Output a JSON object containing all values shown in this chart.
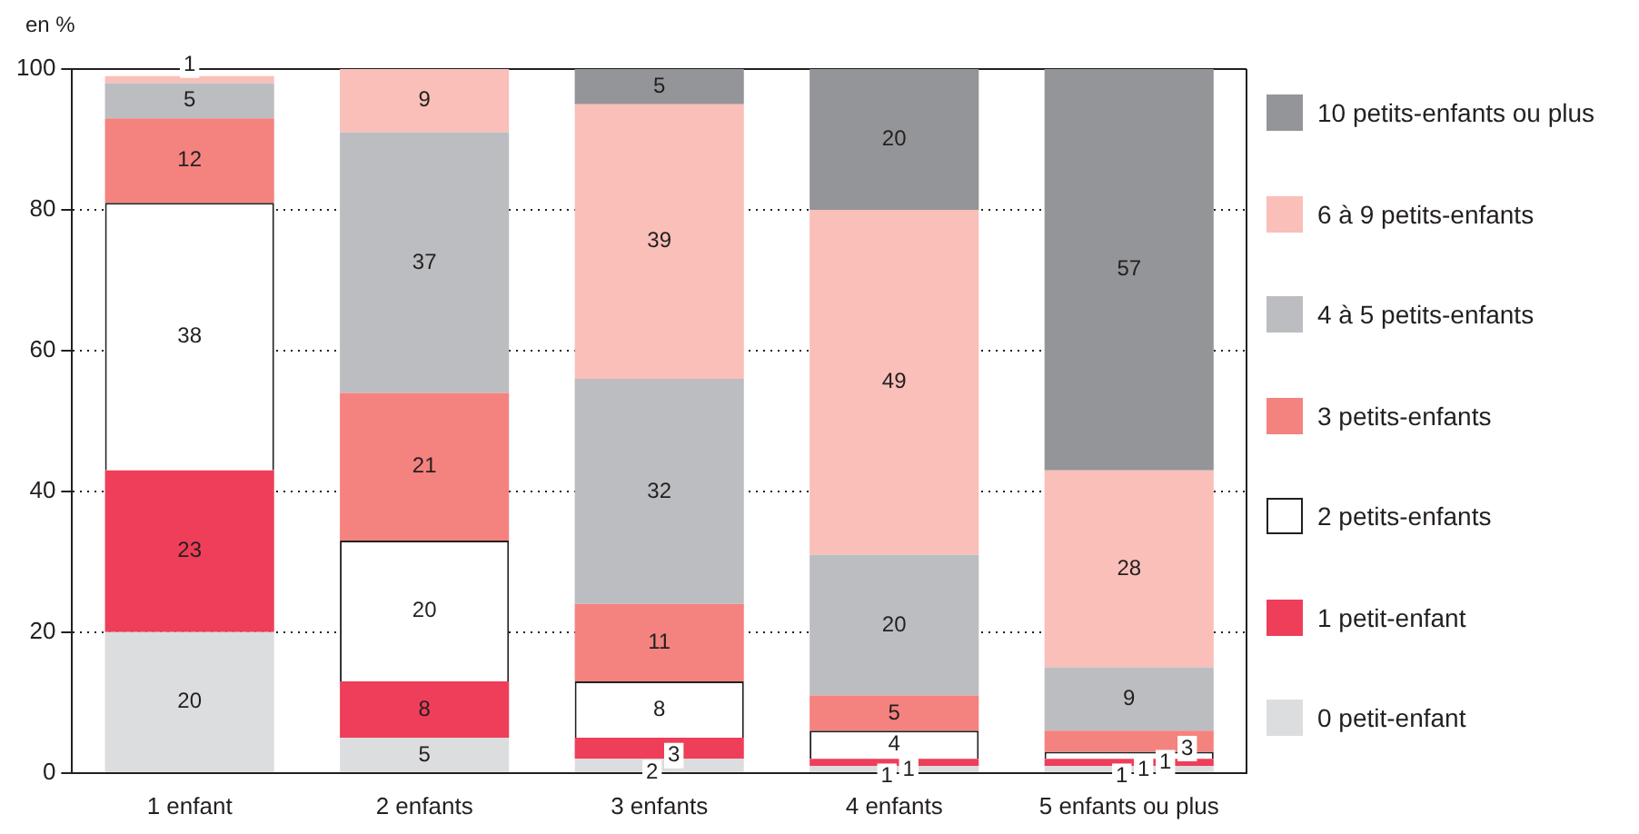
{
  "chart_data": {
    "type": "bar",
    "stacked": true,
    "ylabel": "en %",
    "categories": [
      "1 enfant",
      "2 enfants",
      "3 enfants",
      "4 enfants",
      "5 enfants ou plus"
    ],
    "series": [
      {
        "name": "0 petit-enfant",
        "color": "#dcdddf",
        "values": [
          20,
          5,
          2,
          1,
          1
        ]
      },
      {
        "name": "1 petit-enfant",
        "color": "#ee3e5a",
        "values": [
          23,
          8,
          3,
          1,
          1
        ]
      },
      {
        "name": "2 petits-enfants",
        "color": "#ffffff",
        "values": [
          38,
          20,
          8,
          4,
          1
        ]
      },
      {
        "name": "3 petits-enfants",
        "color": "#f4827f",
        "values": [
          12,
          21,
          11,
          5,
          3
        ]
      },
      {
        "name": "4 à 5 petits-enfants",
        "color": "#bcbdc1",
        "values": [
          5,
          37,
          32,
          20,
          9
        ]
      },
      {
        "name": "6 à 9 petits-enfants",
        "color": "#f9bfb8",
        "values": [
          1,
          9,
          39,
          49,
          28
        ]
      },
      {
        "name": "10 petits-enfants ou plus",
        "color": "#939598",
        "values": [
          null,
          null,
          5,
          20,
          57
        ]
      }
    ],
    "ylim": [
      0,
      100
    ],
    "yticks": [
      0,
      20,
      40,
      60,
      80,
      100
    ],
    "grid": "y",
    "legend": "right",
    "data_labels": true
  }
}
